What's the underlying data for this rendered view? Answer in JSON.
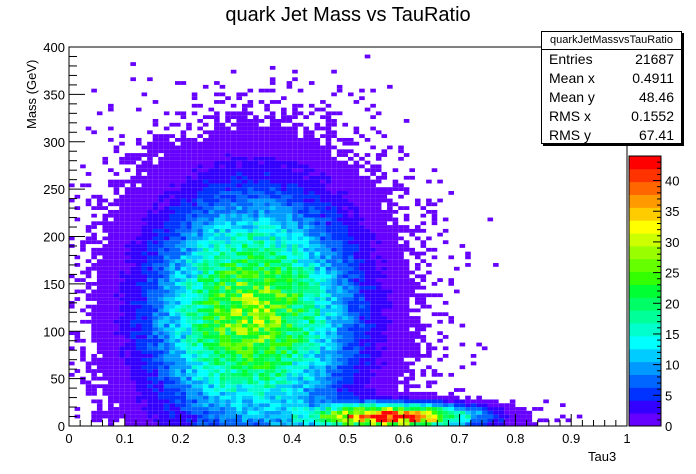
{
  "chart_data": {
    "type": "heatmap",
    "title": "quark Jet Mass vs TauRatio",
    "xlabel": "Tau3",
    "ylabel": "Mass (GeV)",
    "xlim": [
      0,
      1
    ],
    "ylim": [
      0,
      400
    ],
    "x_ticks": [
      "0",
      "0.1",
      "0.2",
      "0.3",
      "0.4",
      "0.5",
      "0.6",
      "0.7",
      "0.8",
      "0.9",
      "1"
    ],
    "y_ticks": [
      "0",
      "50",
      "100",
      "150",
      "200",
      "250",
      "300",
      "350",
      "400"
    ],
    "colorbar": {
      "min": 0,
      "max": 44,
      "ticks": [
        "0",
        "5",
        "10",
        "15",
        "20",
        "25",
        "30",
        "35",
        "40"
      ]
    },
    "stats": {
      "name": "quarkJetMassvsTauRatio",
      "rows": [
        {
          "key": "Entries",
          "value": "21687"
        },
        {
          "key": "Mean x",
          "value": "0.4911"
        },
        {
          "key": "Mean y",
          "value": "48.46"
        },
        {
          "key": "RMS x",
          "value": "0.1552"
        },
        {
          "key": "RMS y",
          "value": "67.41"
        }
      ]
    },
    "distribution": {
      "components": [
        {
          "weight": 0.62,
          "mean_x": 0.58,
          "sd_x": 0.09,
          "mean_y": 10,
          "sd_y": 8
        },
        {
          "weight": 0.38,
          "mean_x": 0.33,
          "sd_x": 0.11,
          "mean_y": 120,
          "sd_y": 75
        }
      ],
      "peak_count": 44,
      "peak_at": {
        "x": 0.6,
        "y": 8
      }
    }
  }
}
